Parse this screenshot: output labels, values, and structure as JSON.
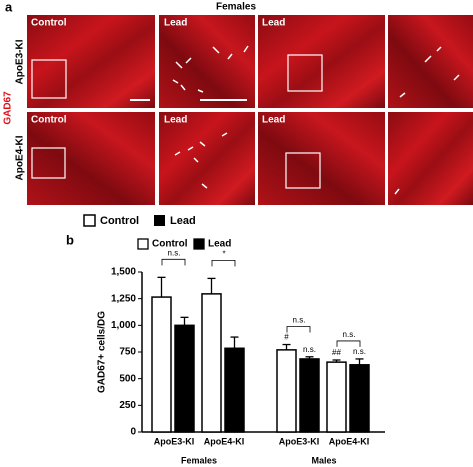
{
  "panel_a": {
    "label": "a",
    "title": "Females",
    "stain": "GAD67",
    "rows": [
      "ApoE3-KI",
      "ApoE4-KI"
    ],
    "panels": [
      [
        "Control",
        "Lead",
        "Lead"
      ],
      [
        "Control",
        "Lead",
        "Lead"
      ]
    ]
  },
  "legend_top": [
    "Control",
    "Lead"
  ],
  "panel_b_label": "b",
  "chart_data": {
    "type": "bar",
    "ylabel": "GAD67+ cells/DG",
    "categories": [
      "ApoE3-KI",
      "ApoE4-KI",
      "ApoE3-KI",
      "ApoE4-KI"
    ],
    "groups": [
      "Females",
      "Males"
    ],
    "series": [
      {
        "name": "Control",
        "color": "#ffffff",
        "values": [
          1265,
          1295,
          770,
          655
        ],
        "errors": [
          185,
          145,
          50,
          20
        ],
        "point_labels": [
          null,
          null,
          "#",
          "##"
        ]
      },
      {
        "name": "Lead",
        "color": "#000000",
        "values": [
          1000,
          785,
          685,
          630
        ],
        "errors": [
          75,
          105,
          20,
          55
        ],
        "point_labels": [
          null,
          null,
          "n.s.",
          "n.s."
        ]
      }
    ],
    "comparisons": [
      "n.s.",
      "*",
      "n.s.",
      "n.s."
    ],
    "ylim": [
      0,
      1500
    ],
    "yticks": [
      0,
      250,
      500,
      750,
      {
        "value": 1000,
        "label": "1,000"
      },
      {
        "value": 1250,
        "label": "1,250"
      },
      {
        "value": 1500,
        "label": "1,500"
      }
    ]
  }
}
